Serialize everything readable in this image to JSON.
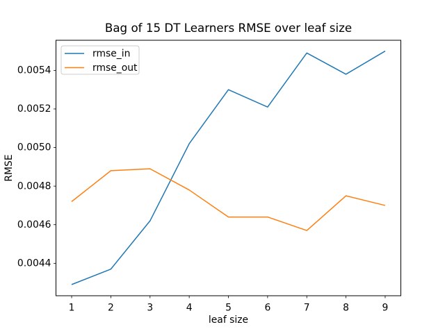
{
  "chart_data": {
    "type": "line",
    "title": "Bag of 15 DT Learners RMSE over leaf size",
    "xlabel": "leaf size",
    "ylabel": "RMSE",
    "x": [
      1,
      2,
      3,
      4,
      5,
      6,
      7,
      8,
      9
    ],
    "series": [
      {
        "name": "rmse_in",
        "color": "#1f77b4",
        "values": [
          0.00429,
          0.00437,
          0.00462,
          0.00502,
          0.0053,
          0.00521,
          0.00549,
          0.00538,
          0.0055
        ]
      },
      {
        "name": "rmse_out",
        "color": "#ff7f0e",
        "values": [
          0.00472,
          0.00488,
          0.00489,
          0.00478,
          0.00464,
          0.00464,
          0.00457,
          0.00475,
          0.0047
        ]
      }
    ],
    "xticks": [
      1,
      2,
      3,
      4,
      5,
      6,
      7,
      8,
      9
    ],
    "yticks": [
      0.0044,
      0.0046,
      0.0048,
      0.005,
      0.0052,
      0.0054
    ],
    "xlim": [
      0.6,
      9.4
    ],
    "ylim": [
      0.004232,
      0.005556
    ],
    "grid": false,
    "legend": {
      "location": "upper left",
      "entries": [
        "rmse_in",
        "rmse_out"
      ]
    }
  }
}
